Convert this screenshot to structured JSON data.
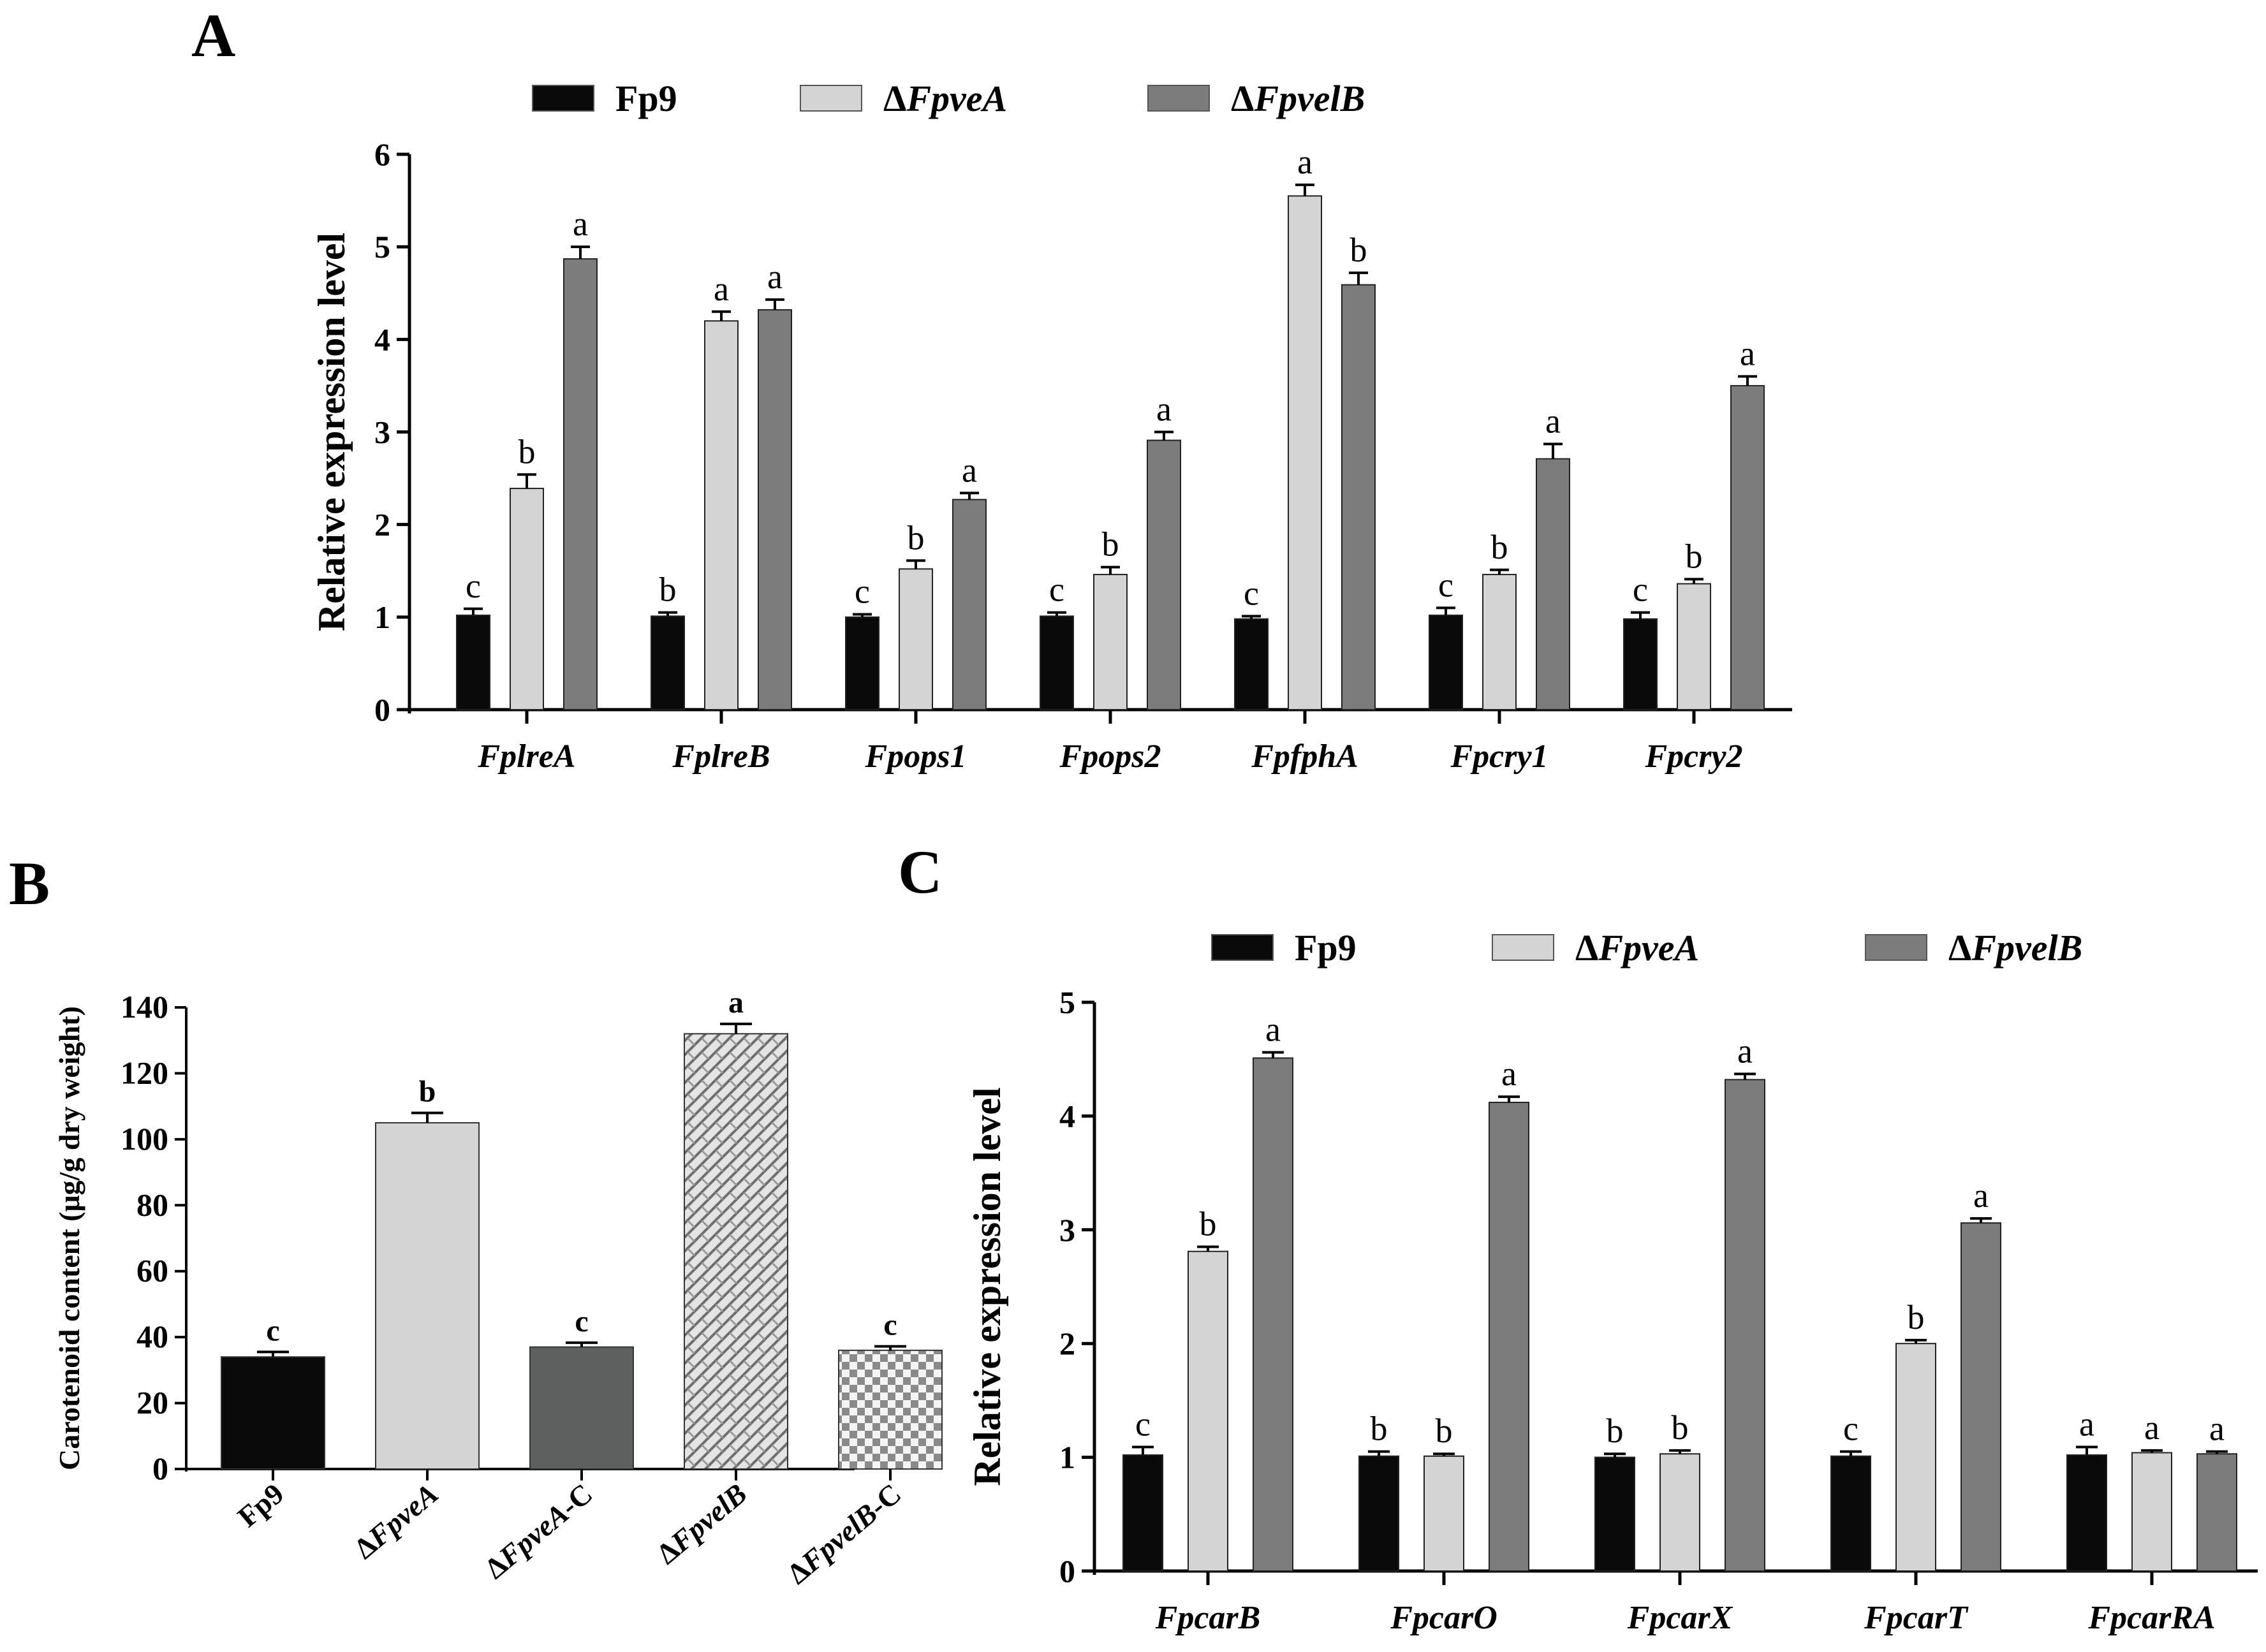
{
  "figure": {
    "colors": {
      "fp9": "#0a0a0a",
      "fpvea": "#d4d4d4",
      "fpvelb": "#7c7c7c",
      "fpvea_c": "#5e605f",
      "outline": "#000000"
    }
  },
  "chart_data": [
    {
      "panel": "A",
      "type": "bar",
      "title": "",
      "xlabel": "",
      "ylabel": "Relative expression level",
      "ylim": [
        0,
        6
      ],
      "yticks": [
        "0",
        "1",
        "2",
        "3",
        "4",
        "5",
        "6"
      ],
      "legend": {
        "placement": "top",
        "entries": [
          {
            "prefix": "",
            "name": "Fp9",
            "italic": false
          },
          {
            "prefix": "Δ",
            "name": "FpveA",
            "italic": true
          },
          {
            "prefix": "Δ",
            "name": "FpvelB",
            "italic": true
          }
        ]
      },
      "categories": [
        "FplreA",
        "FplreB",
        "Fpops1",
        "Fpops2",
        "FpfphA",
        "Fpcry1",
        "Fpcry2"
      ],
      "series": [
        {
          "name": "Fp9",
          "values": [
            1.02,
            1.01,
            1.0,
            1.01,
            0.98,
            1.02,
            0.98
          ],
          "errors": [
            0.07,
            0.04,
            0.03,
            0.04,
            0.03,
            0.08,
            0.07
          ],
          "labels": [
            "c",
            "b",
            "c",
            "c",
            "c",
            "c",
            "c"
          ]
        },
        {
          "name": "ΔFpveA",
          "values": [
            2.39,
            4.2,
            1.52,
            1.46,
            5.55,
            1.46,
            1.36
          ],
          "errors": [
            0.15,
            0.1,
            0.09,
            0.08,
            0.12,
            0.05,
            0.05
          ],
          "labels": [
            "b",
            "a",
            "b",
            "b",
            "a",
            "b",
            "b"
          ]
        },
        {
          "name": "ΔFpvelB",
          "values": [
            4.87,
            4.32,
            2.27,
            2.91,
            4.59,
            2.71,
            3.5
          ],
          "errors": [
            0.13,
            0.11,
            0.07,
            0.09,
            0.13,
            0.16,
            0.1
          ],
          "labels": [
            "a",
            "a",
            "a",
            "a",
            "b",
            "a",
            "a"
          ]
        }
      ]
    },
    {
      "panel": "B",
      "type": "bar",
      "title": "",
      "xlabel": "",
      "ylabel": "Carotenoid content (μg/g dry weight)",
      "ylim": [
        0,
        140
      ],
      "yticks": [
        "0",
        "20",
        "40",
        "60",
        "80",
        "100",
        "120",
        "140"
      ],
      "categories": [
        {
          "prefix": "",
          "name": "Fp9",
          "suffix": ""
        },
        {
          "prefix": "Δ",
          "name": "FpveA",
          "suffix": ""
        },
        {
          "prefix": "Δ",
          "name": "FpveA",
          "suffix": "-C"
        },
        {
          "prefix": "Δ",
          "name": "FpvelB",
          "suffix": ""
        },
        {
          "prefix": "Δ",
          "name": "FpvelB",
          "suffix": "-C"
        }
      ],
      "values": [
        34,
        105,
        37,
        132,
        36
      ],
      "errors": [
        1.5,
        3,
        1.3,
        3,
        1.2
      ],
      "labels": [
        "c",
        "b",
        "c",
        "a",
        "c"
      ]
    },
    {
      "panel": "C",
      "type": "bar",
      "title": "",
      "xlabel": "",
      "ylabel": "Relative expression level",
      "ylim": [
        0,
        5
      ],
      "yticks": [
        "0",
        "1",
        "2",
        "3",
        "4",
        "5"
      ],
      "legend": {
        "placement": "top",
        "entries": [
          {
            "prefix": "",
            "name": "Fp9",
            "italic": false
          },
          {
            "prefix": "Δ",
            "name": "FpveA",
            "italic": true
          },
          {
            "prefix": "Δ",
            "name": "FpvelB",
            "italic": true
          }
        ]
      },
      "categories": [
        "FpcarB",
        "FpcarO",
        "FpcarX",
        "FpcarT",
        "FpcarRA"
      ],
      "series": [
        {
          "name": "Fp9",
          "values": [
            1.02,
            1.01,
            1.0,
            1.01,
            1.02
          ],
          "errors": [
            0.07,
            0.04,
            0.03,
            0.04,
            0.07
          ],
          "labels": [
            "c",
            "b",
            "b",
            "c",
            "a"
          ]
        },
        {
          "name": "ΔFpveA",
          "values": [
            2.81,
            1.01,
            1.03,
            2.0,
            1.04
          ],
          "errors": [
            0.04,
            0.02,
            0.03,
            0.03,
            0.02
          ],
          "labels": [
            "b",
            "b",
            "b",
            "b",
            "a"
          ]
        },
        {
          "name": "ΔFpvelB",
          "values": [
            4.51,
            4.12,
            4.32,
            3.06,
            1.03
          ],
          "errors": [
            0.05,
            0.05,
            0.05,
            0.04,
            0.02
          ],
          "labels": [
            "a",
            "a",
            "a",
            "a",
            "a"
          ]
        }
      ]
    }
  ],
  "panels": {
    "A": "A",
    "B": "B",
    "C": "C"
  }
}
